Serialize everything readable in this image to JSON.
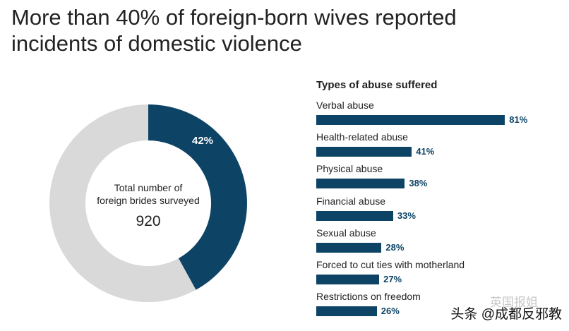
{
  "title_line1": "More than 40% of foreign-born wives reported",
  "title_line2": "incidents of domestic violence",
  "watermark_faint": "英国报姐",
  "watermark": "头条 @成都反邪教",
  "colors": {
    "primary": "#0d4466",
    "remainder": "#d9d9d9",
    "text": "#222222"
  },
  "chart_data": [
    {
      "type": "pie",
      "slices": [
        {
          "label": "42%",
          "value": 42,
          "color": "#0d4466"
        },
        {
          "value": 58,
          "color": "#d9d9d9"
        }
      ],
      "center_text_line1": "Total number of",
      "center_text_line2": "foreign brides surveyed",
      "center_value": "920"
    },
    {
      "type": "bar",
      "orientation": "horizontal",
      "title": "Types of abuse suffered",
      "categories": [
        "Verbal abuse",
        "Health-related abuse",
        "Physical abuse",
        "Financial abuse",
        "Sexual abuse",
        "Forced to cut ties with motherland",
        "Restrictions on freedom"
      ],
      "values": [
        81,
        41,
        38,
        33,
        28,
        27,
        26
      ],
      "value_labels": [
        "81%",
        "41%",
        "38%",
        "33%",
        "28%",
        "27%",
        "26%"
      ],
      "xlim": [
        0,
        100
      ]
    }
  ]
}
